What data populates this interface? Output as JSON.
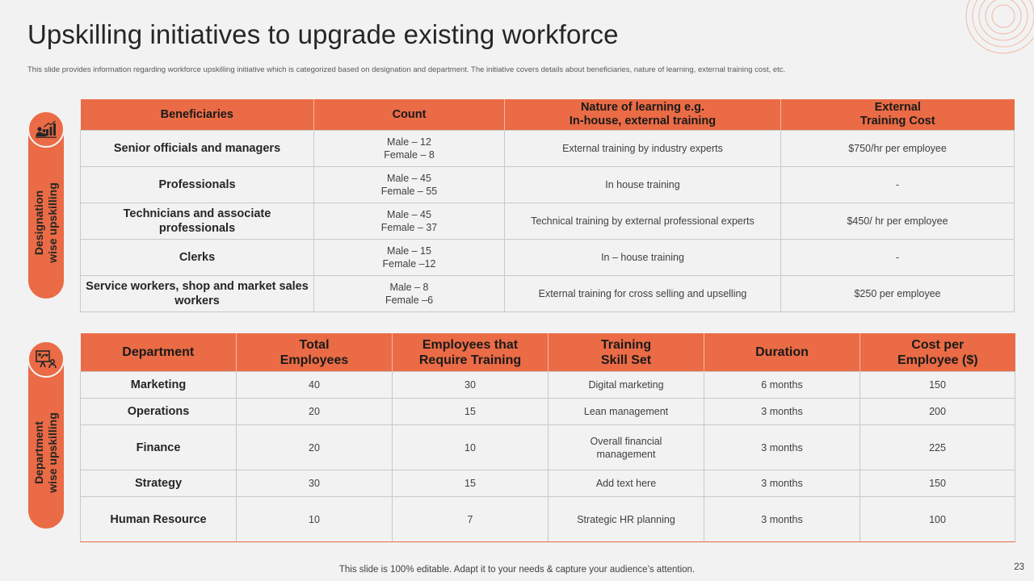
{
  "slide": {
    "title": "Upskilling initiatives to upgrade existing workforce",
    "subtitle": "This slide provides information regarding workforce upskilling initiative which is categorized based on designation and department. The initiative covers details about beneficiaries, nature of learning, external training cost, etc.",
    "footer": "This slide is 100% editable. Adapt it to your needs & capture your audience’s attention.",
    "page_number": "23",
    "accent_color": "#ea6b45"
  },
  "side_labels": {
    "designation": {
      "line1": "Designation",
      "line2": "wise upskilling",
      "icon": "growth-chart-people-icon"
    },
    "department": {
      "line1": "Department",
      "line2": "wise upskilling",
      "icon": "strategy-board-icon"
    }
  },
  "designation_table": {
    "headers": [
      [
        "Beneficiaries"
      ],
      [
        "Count"
      ],
      [
        "Nature of learning e.g.",
        "In-house, external training"
      ],
      [
        "External",
        "Training Cost"
      ]
    ],
    "rows": [
      {
        "beneficiary": "Senior officials and managers",
        "count": [
          "Male – 12",
          "Female – 8"
        ],
        "nature": "External training by industry experts",
        "cost": "$750/hr per employee"
      },
      {
        "beneficiary": "Professionals",
        "count": [
          "Male – 45",
          "Female – 55"
        ],
        "nature": "In house training",
        "cost": "-"
      },
      {
        "beneficiary": "Technicians and associate professionals",
        "count": [
          "Male – 45",
          "Female – 37"
        ],
        "nature": "Technical training by external professional experts",
        "cost": "$450/ hr per employee"
      },
      {
        "beneficiary": "Clerks",
        "count": [
          "Male – 15",
          "Female –12"
        ],
        "nature": "In – house training",
        "cost": "-"
      },
      {
        "beneficiary": "Service workers, shop and market sales workers",
        "count": [
          "Male – 8",
          "Female –6"
        ],
        "nature": "External training for cross selling and upselling",
        "cost": "$250 per employee"
      }
    ]
  },
  "department_table": {
    "headers": [
      [
        "Department"
      ],
      [
        "Total",
        "Employees"
      ],
      [
        "Employees that",
        "Require Training"
      ],
      [
        "Training",
        "Skill Set"
      ],
      [
        "Duration"
      ],
      [
        "Cost  per",
        "Employee ($)"
      ]
    ],
    "rows": [
      {
        "department": "Marketing",
        "total": "40",
        "require": "30",
        "skill": "Digital marketing",
        "duration": "6 months",
        "cost": "150"
      },
      {
        "department": "Operations",
        "total": "20",
        "require": "15",
        "skill": "Lean management",
        "duration": "3 months",
        "cost": "200"
      },
      {
        "department": "Finance",
        "total": "20",
        "require": "10",
        "skill": "Overall  financial management",
        "duration": "3 months",
        "cost": "225"
      },
      {
        "department": "Strategy",
        "total": "30",
        "require": "15",
        "skill": "Add text here",
        "duration": "3 months",
        "cost": "150"
      },
      {
        "department": "Human Resource",
        "total": "10",
        "require": "7",
        "skill": "Strategic HR planning",
        "duration": "3 months",
        "cost": "100"
      }
    ]
  }
}
